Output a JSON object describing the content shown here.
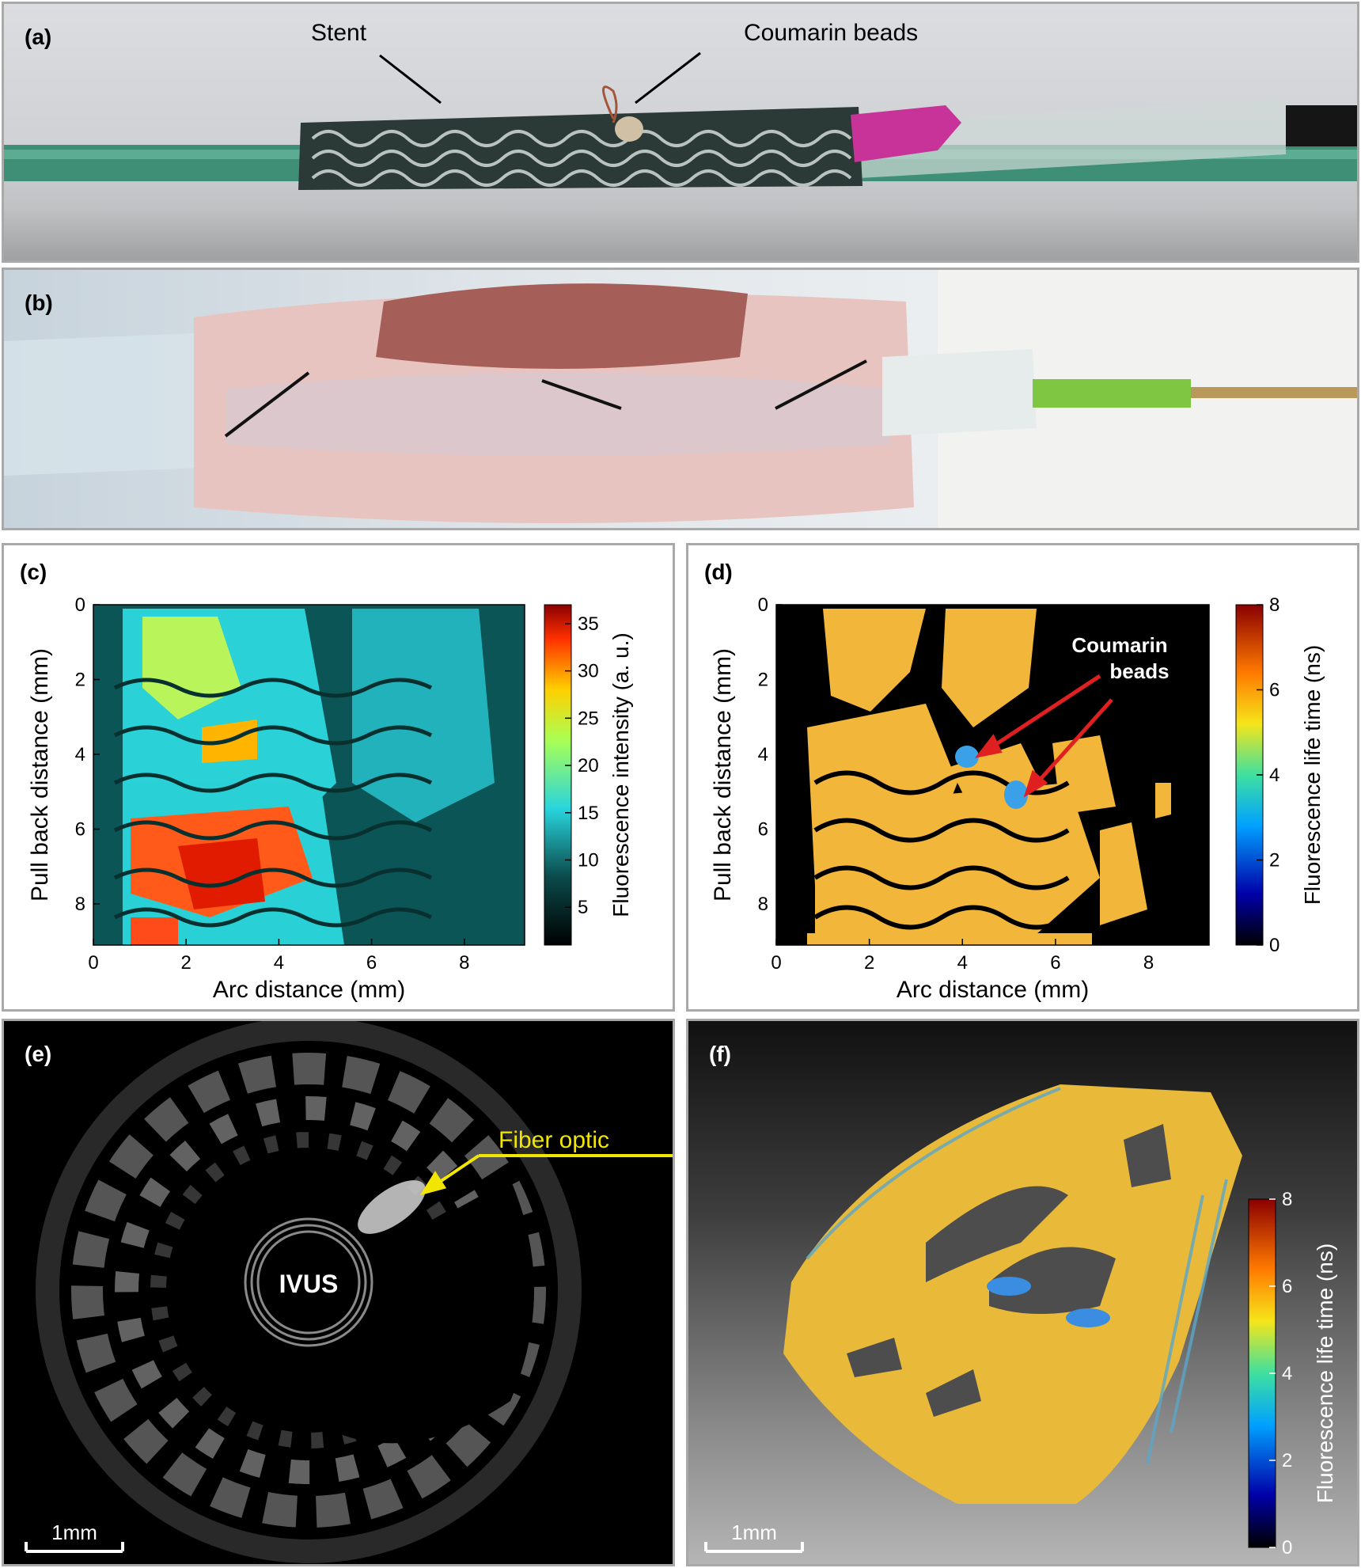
{
  "panels": {
    "a": {
      "label": "(a)",
      "annotations": [
        "Stent",
        "Coumarin beads"
      ]
    },
    "b": {
      "label": "(b)"
    },
    "c": {
      "label": "(c)"
    },
    "d": {
      "label": "(d)",
      "annotation": [
        "Coumarin",
        "beads"
      ]
    },
    "e": {
      "label": "(e)",
      "annotation": "Fiber optic",
      "center_label": "IVUS",
      "scalebar": "1mm"
    },
    "f": {
      "label": "(f)",
      "scalebar": "1mm"
    }
  },
  "chart_data": [
    {
      "type": "heatmap",
      "panel": "c",
      "xlabel": "Arc distance (mm)",
      "ylabel": "Pull back distance (mm)",
      "x_ticks": [
        "0",
        "2",
        "4",
        "6",
        "8"
      ],
      "y_ticks": [
        "0",
        "2",
        "4",
        "6",
        "8"
      ],
      "xlim": [
        0,
        9.3
      ],
      "ylim": [
        9.1,
        0
      ],
      "colorbar": {
        "label": "Fluorescence intensity (a. u.)",
        "ticks": [
          "5",
          "10",
          "15",
          "20",
          "25",
          "30",
          "35"
        ],
        "range": [
          1,
          37
        ],
        "colormap": "jet"
      }
    },
    {
      "type": "heatmap",
      "panel": "d",
      "xlabel": "Arc distance (mm)",
      "ylabel": "Pull back distance (mm)",
      "x_ticks": [
        "0",
        "2",
        "4",
        "6",
        "8"
      ],
      "y_ticks": [
        "0",
        "2",
        "4",
        "6",
        "8"
      ],
      "xlim": [
        0,
        9.3
      ],
      "ylim": [
        9.1,
        0
      ],
      "colorbar": {
        "label": "Fluorescence life time (ns)",
        "ticks": [
          "0",
          "2",
          "4",
          "6",
          "8"
        ],
        "range": [
          0,
          8
        ],
        "colormap": "jet"
      }
    },
    {
      "type": "heatmap",
      "panel": "f",
      "colorbar": {
        "label": "Fluorescence life time (ns)",
        "ticks": [
          "0",
          "2",
          "4",
          "6",
          "8"
        ],
        "range": [
          0,
          8
        ],
        "colormap": "jet"
      }
    }
  ],
  "colors": {
    "panel_border": "#a9a9a9",
    "annotation_yellow": "#f2e600",
    "arrow_red": "#e02020",
    "lifetime_orange": "#f2b63a",
    "bead_blue": "#3aa0e8"
  }
}
